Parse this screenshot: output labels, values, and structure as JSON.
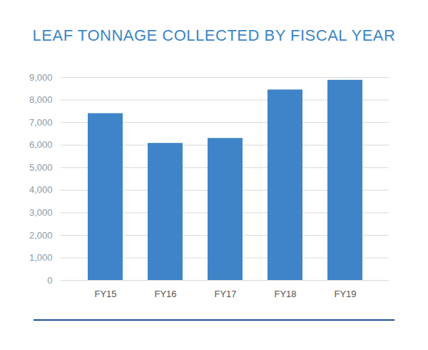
{
  "chart_data": {
    "type": "bar",
    "title": "LEAF TONNAGE COLLECTED BY FISCAL YEAR",
    "categories": [
      "FY15",
      "FY16",
      "FY17",
      "FY18",
      "FY19"
    ],
    "values": [
      7400,
      6080,
      6300,
      8450,
      8880
    ],
    "color": "#3f84c8",
    "ylim": [
      0,
      9000
    ],
    "yticks": [
      0,
      {
        "value": 1000,
        "label": "1,000"
      },
      {
        "value": 2000,
        "label": "2,000"
      },
      {
        "value": 3000,
        "label": "3,000"
      },
      {
        "value": 4000,
        "label": "4,000"
      },
      {
        "value": 5000,
        "label": "5,000"
      },
      {
        "value": 6000,
        "label": "6,000"
      },
      {
        "value": 7000,
        "label": "7,000"
      },
      {
        "value": 8000,
        "label": "8,000"
      },
      {
        "value": 9000,
        "label": "9,000"
      }
    ],
    "grid": true
  }
}
